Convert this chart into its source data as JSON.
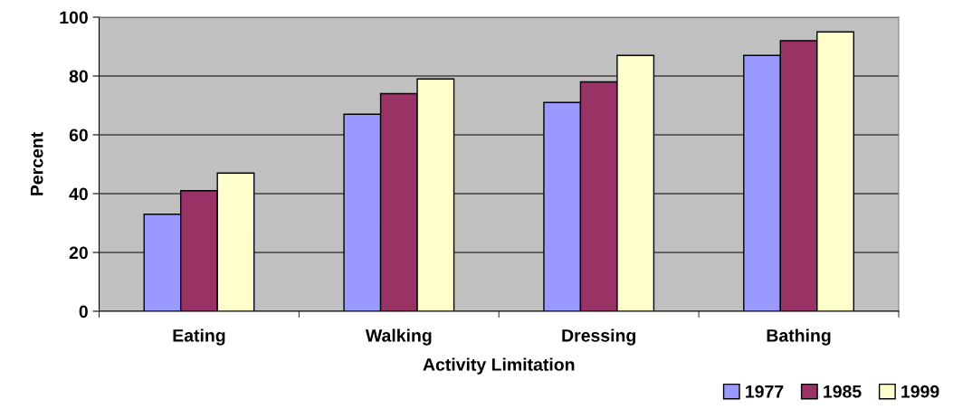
{
  "chart_data": {
    "type": "bar",
    "xlabel": "Activity Limitation",
    "ylabel": "Percent",
    "categories": [
      "Eating",
      "Walking",
      "Dressing",
      "Bathing"
    ],
    "series": [
      {
        "name": "1977",
        "color": "#9999ff",
        "values": [
          33,
          67,
          71,
          87
        ]
      },
      {
        "name": "1985",
        "color": "#993366",
        "values": [
          41,
          74,
          78,
          92
        ]
      },
      {
        "name": "1999",
        "color": "#ffffcc",
        "values": [
          47,
          79,
          87,
          95
        ]
      }
    ],
    "ylim": [
      0,
      100
    ],
    "yticks": [
      0,
      20,
      40,
      60,
      80,
      100
    ],
    "grid": "y",
    "legend": "bottom right"
  }
}
